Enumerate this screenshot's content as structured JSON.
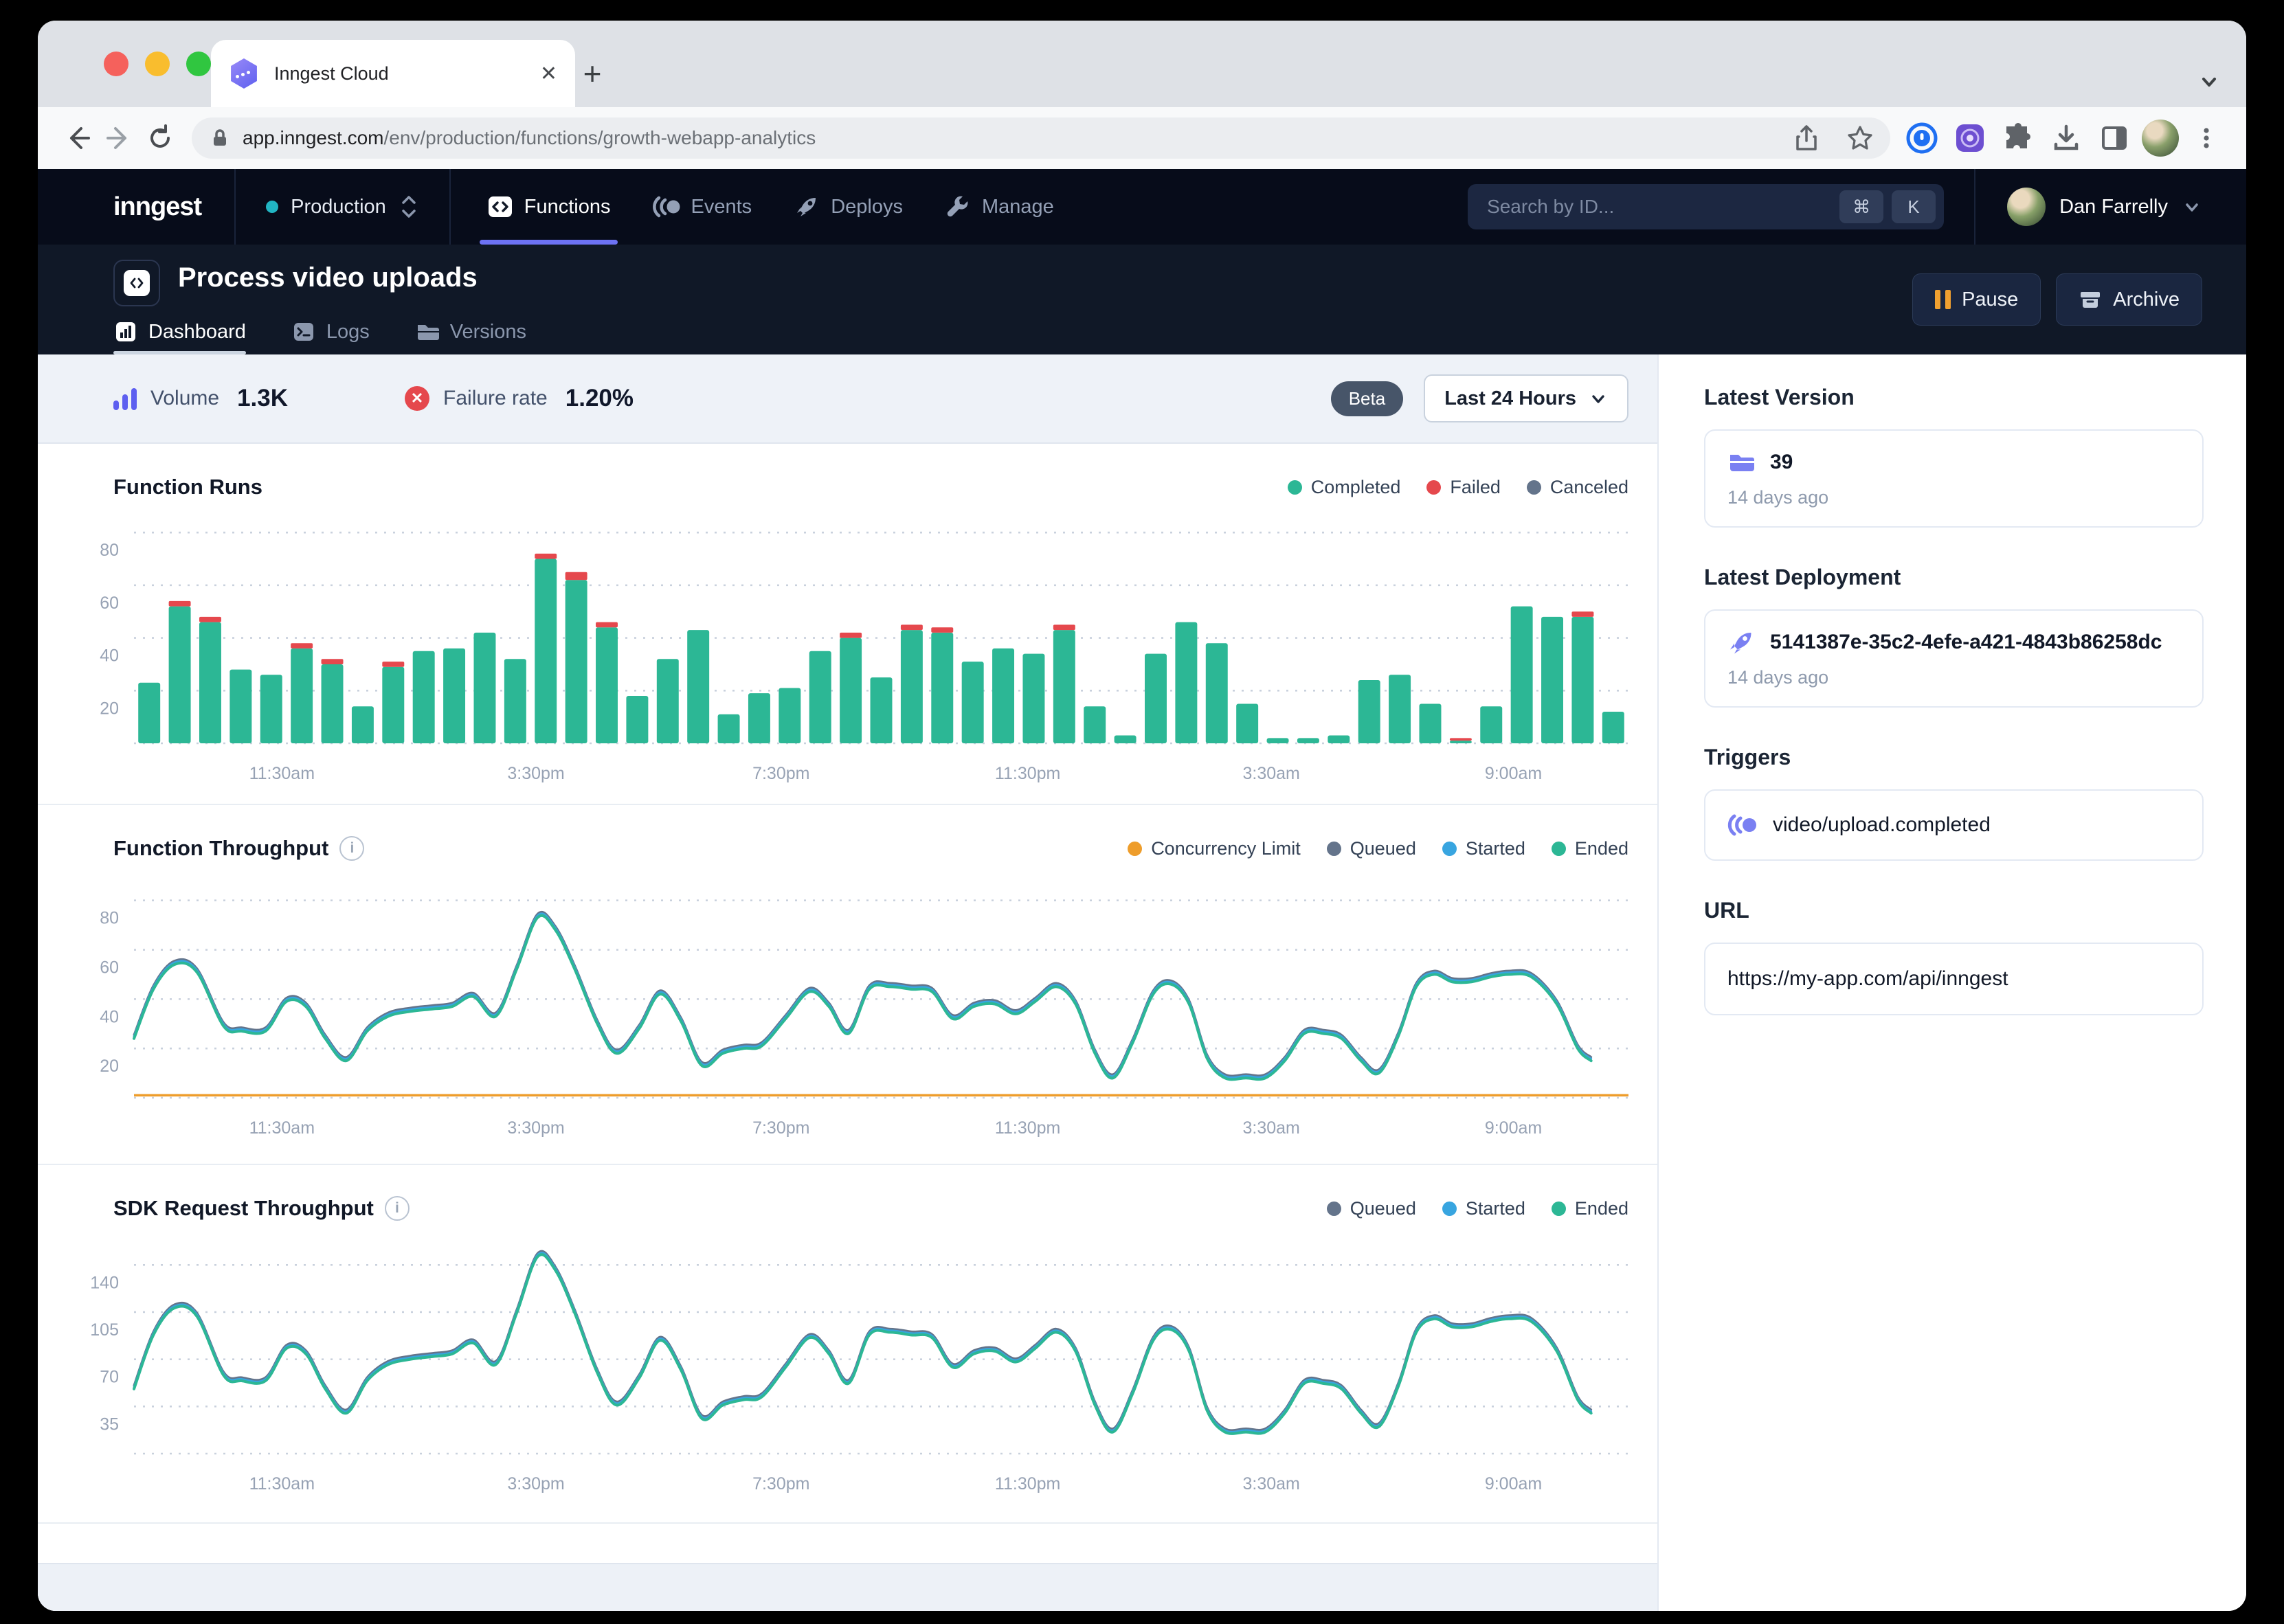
{
  "browser": {
    "tab_title": "Inngest Cloud",
    "url_host": "app.inngest.com",
    "url_path": "/env/production/functions/growth-webapp-analytics"
  },
  "nav": {
    "logo": "inngest",
    "environment": "Production",
    "items": [
      {
        "label": "Functions",
        "active": true
      },
      {
        "label": "Events",
        "active": false
      },
      {
        "label": "Deploys",
        "active": false
      },
      {
        "label": "Manage",
        "active": false
      }
    ],
    "search_placeholder": "Search by ID...",
    "search_key_mod": "⌘",
    "search_key_letter": "K",
    "user_name": "Dan Farrelly"
  },
  "header": {
    "title": "Process video uploads",
    "tabs": [
      {
        "label": "Dashboard",
        "active": true
      },
      {
        "label": "Logs",
        "active": false
      },
      {
        "label": "Versions",
        "active": false
      }
    ],
    "pause_label": "Pause",
    "archive_label": "Archive"
  },
  "stats": {
    "volume_label": "Volume",
    "volume_value": "1.3K",
    "failure_label": "Failure rate",
    "failure_value": "1.20%",
    "beta_label": "Beta",
    "range_label": "Last 24 Hours"
  },
  "sidebar": {
    "latest_version": {
      "heading": "Latest Version",
      "value": "39",
      "time": "14 days ago"
    },
    "latest_deployment": {
      "heading": "Latest Deployment",
      "value": "5141387e-35c2-4efe-a421-4843b86258dc",
      "time": "14 days ago"
    },
    "triggers": {
      "heading": "Triggers",
      "value": "video/upload.completed"
    },
    "url": {
      "heading": "URL",
      "value": "https://my-app.com/api/inngest"
    }
  },
  "colors": {
    "accent_purple": "#6d72f4",
    "teal": "#2cb795",
    "red": "#e5484d",
    "blue": "#38a5e0",
    "slate": "#64748b",
    "orange": "#ee9d2b",
    "cyan_env_dot": "#21b5c3"
  },
  "chart_data": [
    {
      "type": "bar",
      "title": "Function Runs",
      "legend": [
        {
          "label": "Completed",
          "color": "#2cb795"
        },
        {
          "label": "Failed",
          "color": "#e5484d"
        },
        {
          "label": "Canceled",
          "color": "#64748b"
        }
      ],
      "ylim": [
        0,
        85
      ],
      "yticks": [
        20,
        40,
        60,
        80
      ],
      "grid": "dotted",
      "xticks": [
        {
          "label": "11:30am",
          "x": 0.099
        },
        {
          "label": "3:30pm",
          "x": 0.269
        },
        {
          "label": "7:30pm",
          "x": 0.433
        },
        {
          "label": "11:30pm",
          "x": 0.598
        },
        {
          "label": "3:30am",
          "x": 0.761
        },
        {
          "label": "9:00am",
          "x": 0.923
        }
      ],
      "series": [
        {
          "name": "Completed",
          "color": "#2cb795",
          "values": [
            23,
            52,
            46,
            28,
            26,
            36,
            30,
            14,
            29,
            35,
            36,
            42,
            32,
            70,
            62,
            44,
            18,
            32,
            43,
            11,
            19,
            21,
            35,
            40,
            25,
            43,
            42,
            31,
            36,
            34,
            43,
            14,
            3,
            34,
            46,
            38,
            15,
            2,
            2,
            3,
            24,
            26,
            15,
            1,
            14,
            52,
            48,
            48,
            12
          ]
        },
        {
          "name": "Failed",
          "color": "#e5484d",
          "values": [
            0,
            2,
            2,
            0,
            0,
            2,
            2,
            0,
            2,
            0,
            0,
            0,
            0,
            2,
            3,
            2,
            0,
            0,
            0,
            0,
            0,
            0,
            0,
            2,
            0,
            2,
            2,
            0,
            0,
            0,
            2,
            0,
            0,
            0,
            0,
            0,
            0,
            0,
            0,
            0,
            0,
            0,
            0,
            1,
            0,
            0,
            0,
            2,
            0
          ]
        }
      ]
    },
    {
      "type": "line",
      "title": "Function Throughput",
      "legend": [
        {
          "label": "Concurrency Limit",
          "color": "#ee9d2b"
        },
        {
          "label": "Queued",
          "color": "#64748b"
        },
        {
          "label": "Started",
          "color": "#38a5e0"
        },
        {
          "label": "Ended",
          "color": "#2cb795"
        }
      ],
      "ylim": [
        0,
        88
      ],
      "yticks": [
        20,
        40,
        60,
        80
      ],
      "grid": "dotted",
      "concurrency_limit": 1,
      "xticks": [
        {
          "label": "11:30am",
          "x": 0.099
        },
        {
          "label": "3:30pm",
          "x": 0.269
        },
        {
          "label": "7:30pm",
          "x": 0.433
        },
        {
          "label": "11:30pm",
          "x": 0.598
        },
        {
          "label": "3:30am",
          "x": 0.761
        },
        {
          "label": "9:00am",
          "x": 0.923
        }
      ],
      "series": [
        {
          "name": "Ended",
          "color": "#2cb795",
          "points": [
            [
              0,
              24
            ],
            [
              0.013,
              44
            ],
            [
              0.027,
              54
            ],
            [
              0.042,
              51
            ],
            [
              0.06,
              29
            ],
            [
              0.072,
              27
            ],
            [
              0.088,
              27
            ],
            [
              0.102,
              39
            ],
            [
              0.115,
              37
            ],
            [
              0.128,
              24
            ],
            [
              0.142,
              15
            ],
            [
              0.156,
              27
            ],
            [
              0.17,
              33
            ],
            [
              0.185,
              35
            ],
            [
              0.2,
              36
            ],
            [
              0.213,
              37
            ],
            [
              0.227,
              41
            ],
            [
              0.242,
              33
            ],
            [
              0.256,
              52
            ],
            [
              0.27,
              73
            ],
            [
              0.282,
              68
            ],
            [
              0.295,
              52
            ],
            [
              0.31,
              30
            ],
            [
              0.323,
              18
            ],
            [
              0.338,
              28
            ],
            [
              0.352,
              42
            ],
            [
              0.366,
              31
            ],
            [
              0.38,
              13
            ],
            [
              0.394,
              18
            ],
            [
              0.408,
              20
            ],
            [
              0.42,
              21
            ],
            [
              0.436,
              32
            ],
            [
              0.452,
              43
            ],
            [
              0.465,
              37
            ],
            [
              0.478,
              26
            ],
            [
              0.492,
              44
            ],
            [
              0.506,
              45
            ],
            [
              0.52,
              44
            ],
            [
              0.534,
              43
            ],
            [
              0.548,
              32
            ],
            [
              0.562,
              37
            ],
            [
              0.576,
              38
            ],
            [
              0.59,
              34
            ],
            [
              0.603,
              39
            ],
            [
              0.617,
              45
            ],
            [
              0.63,
              38
            ],
            [
              0.643,
              18
            ],
            [
              0.655,
              8
            ],
            [
              0.668,
              22
            ],
            [
              0.682,
              42
            ],
            [
              0.694,
              46
            ],
            [
              0.706,
              38
            ],
            [
              0.718,
              16
            ],
            [
              0.73,
              8
            ],
            [
              0.744,
              8
            ],
            [
              0.757,
              8
            ],
            [
              0.77,
              15
            ],
            [
              0.783,
              26
            ],
            [
              0.796,
              26
            ],
            [
              0.808,
              24
            ],
            [
              0.821,
              15
            ],
            [
              0.833,
              10
            ],
            [
              0.846,
              25
            ],
            [
              0.858,
              45
            ],
            [
              0.87,
              50
            ],
            [
              0.882,
              47
            ],
            [
              0.895,
              47
            ],
            [
              0.908,
              49
            ],
            [
              0.92,
              50
            ],
            [
              0.935,
              49
            ],
            [
              0.952,
              38
            ],
            [
              0.966,
              20
            ],
            [
              0.975,
              15
            ]
          ]
        }
      ]
    },
    {
      "type": "line",
      "title": "SDK Request Throughput",
      "legend": [
        {
          "label": "Queued",
          "color": "#64748b"
        },
        {
          "label": "Started",
          "color": "#38a5e0"
        },
        {
          "label": "Ended",
          "color": "#2cb795"
        }
      ],
      "ylim": [
        0,
        158
      ],
      "yticks": [
        35,
        70,
        105,
        140
      ],
      "grid": "dotted",
      "xticks": [
        {
          "label": "11:30am",
          "x": 0.099
        },
        {
          "label": "3:30pm",
          "x": 0.269
        },
        {
          "label": "7:30pm",
          "x": 0.433
        },
        {
          "label": "11:30pm",
          "x": 0.598
        },
        {
          "label": "3:30am",
          "x": 0.761
        },
        {
          "label": "9:00am",
          "x": 0.923
        }
      ],
      "series": [
        {
          "name": "Ended",
          "color": "#2cb795",
          "points": [
            [
              0,
              48
            ],
            [
              0.013,
              88
            ],
            [
              0.027,
              108
            ],
            [
              0.042,
              102
            ],
            [
              0.06,
              58
            ],
            [
              0.072,
              54
            ],
            [
              0.088,
              54
            ],
            [
              0.102,
              78
            ],
            [
              0.115,
              74
            ],
            [
              0.128,
              48
            ],
            [
              0.142,
              30
            ],
            [
              0.156,
              54
            ],
            [
              0.17,
              66
            ],
            [
              0.185,
              70
            ],
            [
              0.2,
              72
            ],
            [
              0.213,
              74
            ],
            [
              0.227,
              82
            ],
            [
              0.242,
              66
            ],
            [
              0.256,
              104
            ],
            [
              0.27,
              146
            ],
            [
              0.282,
              136
            ],
            [
              0.295,
              104
            ],
            [
              0.31,
              60
            ],
            [
              0.323,
              36
            ],
            [
              0.338,
              56
            ],
            [
              0.352,
              84
            ],
            [
              0.366,
              62
            ],
            [
              0.38,
              26
            ],
            [
              0.394,
              36
            ],
            [
              0.408,
              40
            ],
            [
              0.42,
              42
            ],
            [
              0.436,
              64
            ],
            [
              0.452,
              86
            ],
            [
              0.465,
              74
            ],
            [
              0.478,
              52
            ],
            [
              0.492,
              88
            ],
            [
              0.506,
              90
            ],
            [
              0.52,
              88
            ],
            [
              0.534,
              86
            ],
            [
              0.548,
              64
            ],
            [
              0.562,
              74
            ],
            [
              0.576,
              76
            ],
            [
              0.59,
              68
            ],
            [
              0.603,
              78
            ],
            [
              0.617,
              90
            ],
            [
              0.63,
              76
            ],
            [
              0.643,
              36
            ],
            [
              0.655,
              16
            ],
            [
              0.668,
              44
            ],
            [
              0.682,
              84
            ],
            [
              0.694,
              92
            ],
            [
              0.706,
              76
            ],
            [
              0.718,
              32
            ],
            [
              0.73,
              16
            ],
            [
              0.744,
              16
            ],
            [
              0.757,
              16
            ],
            [
              0.77,
              30
            ],
            [
              0.783,
              52
            ],
            [
              0.796,
              52
            ],
            [
              0.808,
              48
            ],
            [
              0.821,
              30
            ],
            [
              0.833,
              20
            ],
            [
              0.846,
              50
            ],
            [
              0.858,
              90
            ],
            [
              0.87,
              100
            ],
            [
              0.882,
              94
            ],
            [
              0.895,
              94
            ],
            [
              0.908,
              98
            ],
            [
              0.92,
              100
            ],
            [
              0.935,
              98
            ],
            [
              0.952,
              76
            ],
            [
              0.966,
              40
            ],
            [
              0.975,
              30
            ]
          ]
        }
      ]
    }
  ]
}
